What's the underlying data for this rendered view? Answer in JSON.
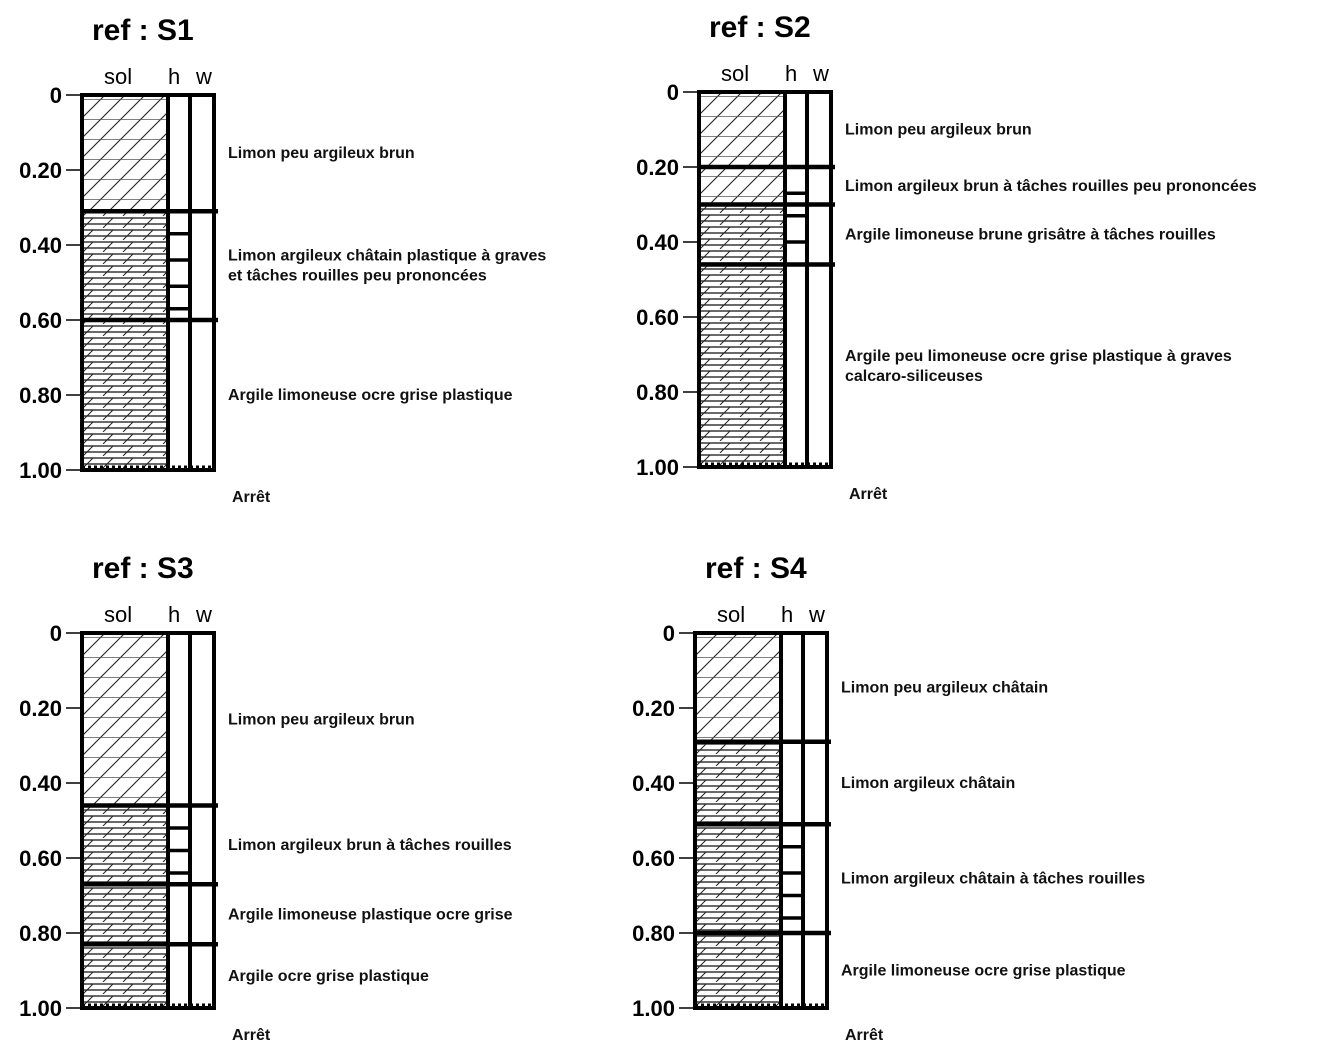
{
  "column_headers": {
    "soil": "sol",
    "h": "h",
    "w": "w"
  },
  "end_label": "Arrêt",
  "depth_ticks": [
    "0",
    "0.20",
    "0.40",
    "0.60",
    "0.80",
    "1.00"
  ],
  "logs": [
    {
      "title": "ref : S1",
      "layers": [
        {
          "top": 0,
          "bottom": 0.31,
          "pattern": "diagonal",
          "description": [
            "Limon peu argileux brun"
          ],
          "h_marks": []
        },
        {
          "top": 0.31,
          "bottom": 0.6,
          "pattern": "dash-diagonal",
          "description": [
            "Limon argileux châtain plastique à graves",
            "et tâches rouilles peu prononcées"
          ],
          "h_marks": [
            0.37,
            0.44,
            0.51,
            0.57
          ]
        },
        {
          "top": 0.6,
          "bottom": 1.0,
          "pattern": "dash-diagonal",
          "description": [
            "Argile limoneuse ocre grise plastique"
          ],
          "h_marks": []
        }
      ]
    },
    {
      "title": "ref : S2",
      "layers": [
        {
          "top": 0,
          "bottom": 0.2,
          "pattern": "diagonal",
          "description": [
            "Limon peu argileux brun"
          ],
          "h_marks": []
        },
        {
          "top": 0.2,
          "bottom": 0.3,
          "pattern": "diagonal",
          "description": [
            "Limon argileux brun à tâches rouilles peu prononcées"
          ],
          "h_marks": [
            0.27
          ]
        },
        {
          "top": 0.3,
          "bottom": 0.46,
          "pattern": "dash-diagonal",
          "description": [
            "Argile limoneuse brune grisâtre à tâches rouilles"
          ],
          "h_marks": [
            0.33,
            0.4
          ]
        },
        {
          "top": 0.46,
          "bottom": 1.0,
          "pattern": "dash-diagonal",
          "description": [
            "Argile peu limoneuse ocre grise plastique à graves",
            "calcaro-siliceuses"
          ],
          "h_marks": []
        }
      ]
    },
    {
      "title": "ref : S3",
      "layers": [
        {
          "top": 0,
          "bottom": 0.46,
          "pattern": "diagonal",
          "description": [
            "Limon peu argileux brun"
          ],
          "h_marks": []
        },
        {
          "top": 0.46,
          "bottom": 0.67,
          "pattern": "dash-diagonal",
          "description": [
            "Limon argileux brun à tâches rouilles"
          ],
          "h_marks": [
            0.52,
            0.58,
            0.64
          ]
        },
        {
          "top": 0.67,
          "bottom": 0.83,
          "pattern": "dash-diagonal",
          "description": [
            "Argile limoneuse plastique ocre grise"
          ],
          "h_marks": []
        },
        {
          "top": 0.83,
          "bottom": 1.0,
          "pattern": "dash-diagonal",
          "description": [
            "Argile ocre grise plastique"
          ],
          "h_marks": []
        }
      ]
    },
    {
      "title": "ref : S4",
      "layers": [
        {
          "top": 0,
          "bottom": 0.29,
          "pattern": "diagonal",
          "description": [
            "Limon peu argileux châtain"
          ],
          "h_marks": []
        },
        {
          "top": 0.29,
          "bottom": 0.51,
          "pattern": "dash-diagonal",
          "description": [
            "Limon argileux châtain"
          ],
          "h_marks": []
        },
        {
          "top": 0.51,
          "bottom": 0.8,
          "pattern": "dash-diagonal",
          "description": [
            "Limon argileux châtain à tâches rouilles"
          ],
          "h_marks": [
            0.57,
            0.64,
            0.7,
            0.76
          ]
        },
        {
          "top": 0.8,
          "bottom": 1.0,
          "pattern": "dash-diagonal",
          "description": [
            "Argile limoneuse ocre grise plastique"
          ],
          "h_marks": []
        }
      ]
    }
  ]
}
